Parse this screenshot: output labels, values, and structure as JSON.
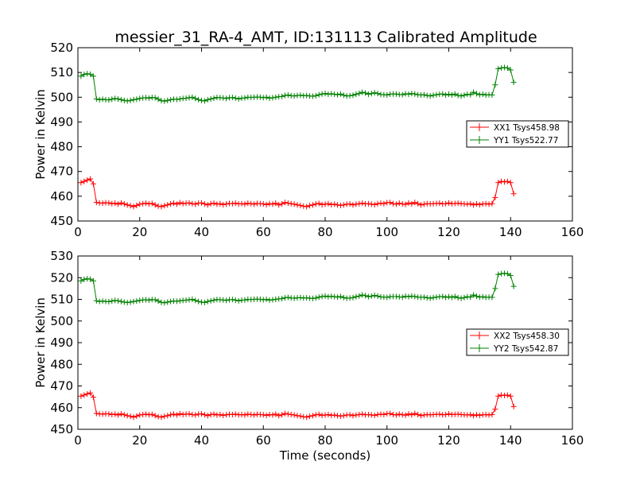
{
  "title": "messier_31_RA-4_AMT, ID:131113 Calibrated Amplitude",
  "xlabel": "Time (seconds)",
  "colors": {
    "xx": "#ff0000",
    "yy": "#008000",
    "frame": "#000000",
    "background": "#ffffff"
  },
  "chart_data": [
    {
      "type": "line",
      "title": "messier_31_RA-4_AMT, ID:131113 Calibrated Amplitude",
      "xlabel": "",
      "ylabel": "Power in Kelvin",
      "xlim": [
        0,
        160
      ],
      "ylim": [
        450,
        520
      ],
      "xticks": [
        "0",
        "20",
        "40",
        "60",
        "80",
        "100",
        "120",
        "140",
        "160"
      ],
      "yticks": [
        "450",
        "460",
        "470",
        "480",
        "490",
        "500",
        "510",
        "520"
      ],
      "grid": false,
      "legend_position": "center-right",
      "x": [
        1,
        2,
        3,
        4,
        5,
        6,
        7,
        8,
        9,
        10,
        11,
        12,
        13,
        14,
        15,
        16,
        17,
        18,
        19,
        20,
        21,
        22,
        23,
        24,
        25,
        26,
        27,
        28,
        29,
        30,
        31,
        32,
        33,
        34,
        35,
        36,
        37,
        38,
        39,
        40,
        41,
        42,
        43,
        44,
        45,
        46,
        47,
        48,
        49,
        50,
        51,
        52,
        53,
        54,
        55,
        56,
        57,
        58,
        59,
        60,
        61,
        62,
        63,
        64,
        65,
        66,
        67,
        68,
        69,
        70,
        71,
        72,
        73,
        74,
        75,
        76,
        77,
        78,
        79,
        80,
        81,
        82,
        83,
        84,
        85,
        86,
        87,
        88,
        89,
        90,
        91,
        92,
        93,
        94,
        95,
        96,
        97,
        98,
        99,
        100,
        101,
        102,
        103,
        104,
        105,
        106,
        107,
        108,
        109,
        110,
        111,
        112,
        113,
        114,
        115,
        116,
        117,
        118,
        119,
        120,
        121,
        122,
        123,
        124,
        125,
        126,
        127,
        128,
        129,
        130,
        131,
        132,
        133,
        134,
        135,
        136,
        137,
        138,
        139,
        140,
        141
      ],
      "series": [
        {
          "name": "XX1 Tsys458.98",
          "color": "#ff0000",
          "values": [
            465.5,
            466,
            466.5,
            467,
            465,
            457.5,
            457.3,
            457.2,
            457.4,
            457.3,
            457.0,
            457.2,
            456.8,
            457.3,
            456.9,
            456.5,
            456.2,
            455.8,
            456.3,
            456.8,
            457.0,
            457.2,
            456.9,
            457.1,
            456.5,
            456.0,
            455.8,
            456.2,
            456.5,
            456.9,
            457.2,
            456.8,
            457.4,
            457.0,
            457.2,
            457.3,
            457.0,
            456.8,
            457.2,
            457.3,
            456.9,
            456.5,
            457.0,
            457.2,
            456.8,
            457.0,
            456.6,
            456.9,
            457.1,
            457.0,
            457.2,
            456.9,
            457.0,
            456.8,
            457.2,
            457.0,
            456.8,
            457.1,
            457.0,
            456.9,
            456.6,
            457.0,
            456.8,
            457.2,
            456.5,
            456.9,
            457.5,
            457.2,
            457.0,
            456.8,
            456.5,
            456.3,
            456.0,
            455.8,
            456.2,
            456.5,
            456.9,
            457.1,
            456.6,
            456.8,
            457.0,
            456.6,
            456.8,
            456.5,
            456.3,
            456.5,
            456.8,
            456.9,
            456.5,
            456.8,
            457.0,
            457.2,
            456.9,
            457.0,
            456.8,
            456.6,
            457.0,
            457.2,
            457.0,
            457.4,
            457.5,
            457.0,
            456.8,
            457.2,
            456.9,
            456.7,
            457.3,
            456.9,
            457.5,
            457.0,
            456.5,
            456.8,
            457.0,
            456.9,
            457.0,
            457.1,
            457.2,
            456.9,
            457.0,
            457.3,
            457.0,
            457.1,
            457.2,
            457.0,
            456.9,
            456.8,
            457.0,
            456.5,
            456.9,
            456.6,
            456.9,
            457.0,
            456.8,
            457.0,
            459.5,
            465.5,
            466,
            465.8,
            466,
            465.5,
            461
          ]
        },
        {
          "name": "YY1 Tsys522.77",
          "color": "#008000",
          "values": [
            508.5,
            509.2,
            509.5,
            509.3,
            508.5,
            499.3,
            499.0,
            499.2,
            499.0,
            498.9,
            499.2,
            499.5,
            499.3,
            499.0,
            498.7,
            498.5,
            498.7,
            499.0,
            499.2,
            499.5,
            499.7,
            499.8,
            499.6,
            499.9,
            499.8,
            499.2,
            498.6,
            498.4,
            498.7,
            499.0,
            499.2,
            499.1,
            499.3,
            499.5,
            499.6,
            499.8,
            500.0,
            499.5,
            499.0,
            498.7,
            498.5,
            499.0,
            499.3,
            499.6,
            499.9,
            499.8,
            499.7,
            499.5,
            499.8,
            499.9,
            499.6,
            499.3,
            499.6,
            499.7,
            500.0,
            499.9,
            500.0,
            500.1,
            500.0,
            499.8,
            500.0,
            499.6,
            499.8,
            500.0,
            500.2,
            500.3,
            500.7,
            500.9,
            500.6,
            500.5,
            500.7,
            500.8,
            500.6,
            500.7,
            500.5,
            500.4,
            500.6,
            501.0,
            501.3,
            501.5,
            501.2,
            501.4,
            501.2,
            501.0,
            501.3,
            500.8,
            500.5,
            500.6,
            500.8,
            501.2,
            501.5,
            502.0,
            501.7,
            501.2,
            501.5,
            501.8,
            501.5,
            501.1,
            501.0,
            500.9,
            501.2,
            501.3,
            501.3,
            501.1,
            501.0,
            501.4,
            501.2,
            501.5,
            501.3,
            501.0,
            500.9,
            501.0,
            500.7,
            500.5,
            500.8,
            501.0,
            501.2,
            501.3,
            500.9,
            501.2,
            500.9,
            501.3,
            500.7,
            500.5,
            500.8,
            501.2,
            501.0,
            502.0,
            501.4,
            501.0,
            501.2,
            500.9,
            501.0,
            500.9,
            505,
            511.5,
            511.8,
            512,
            511.8,
            511,
            506
          ]
        }
      ]
    },
    {
      "type": "line",
      "title": "",
      "xlabel": "Time (seconds)",
      "ylabel": "Power in Kelvin",
      "xlim": [
        0,
        160
      ],
      "ylim": [
        450,
        530
      ],
      "xticks": [
        "0",
        "20",
        "40",
        "60",
        "80",
        "100",
        "120",
        "140",
        "160"
      ],
      "yticks": [
        "450",
        "460",
        "470",
        "480",
        "490",
        "500",
        "510",
        "520",
        "530"
      ],
      "grid": false,
      "legend_position": "center-right",
      "x": [
        1,
        2,
        3,
        4,
        5,
        6,
        7,
        8,
        9,
        10,
        11,
        12,
        13,
        14,
        15,
        16,
        17,
        18,
        19,
        20,
        21,
        22,
        23,
        24,
        25,
        26,
        27,
        28,
        29,
        30,
        31,
        32,
        33,
        34,
        35,
        36,
        37,
        38,
        39,
        40,
        41,
        42,
        43,
        44,
        45,
        46,
        47,
        48,
        49,
        50,
        51,
        52,
        53,
        54,
        55,
        56,
        57,
        58,
        59,
        60,
        61,
        62,
        63,
        64,
        65,
        66,
        67,
        68,
        69,
        70,
        71,
        72,
        73,
        74,
        75,
        76,
        77,
        78,
        79,
        80,
        81,
        82,
        83,
        84,
        85,
        86,
        87,
        88,
        89,
        90,
        91,
        92,
        93,
        94,
        95,
        96,
        97,
        98,
        99,
        100,
        101,
        102,
        103,
        104,
        105,
        106,
        107,
        108,
        109,
        110,
        111,
        112,
        113,
        114,
        115,
        116,
        117,
        118,
        119,
        120,
        121,
        122,
        123,
        124,
        125,
        126,
        127,
        128,
        129,
        130,
        131,
        132,
        133,
        134,
        135,
        136,
        137,
        138,
        139,
        140,
        141
      ],
      "series": [
        {
          "name": "XX2 Tsys458.30",
          "color": "#ff0000",
          "values": [
            465.3,
            465.8,
            466.3,
            466.8,
            464.8,
            457.3,
            457.1,
            457.0,
            457.2,
            457.1,
            456.8,
            457.0,
            456.6,
            457.1,
            456.7,
            456.3,
            456.0,
            455.6,
            456.1,
            456.6,
            456.8,
            457.0,
            456.7,
            456.9,
            456.3,
            455.8,
            455.6,
            456.0,
            456.3,
            456.7,
            457.0,
            456.6,
            457.2,
            456.8,
            457.0,
            457.1,
            456.8,
            456.6,
            457.0,
            457.1,
            456.7,
            456.3,
            456.8,
            457.0,
            456.6,
            456.8,
            456.4,
            456.7,
            456.9,
            456.8,
            457.0,
            456.7,
            456.8,
            456.6,
            457.0,
            456.8,
            456.6,
            456.9,
            456.8,
            456.7,
            456.4,
            456.8,
            456.6,
            457.0,
            456.3,
            456.7,
            457.3,
            457.0,
            456.8,
            456.6,
            456.3,
            456.1,
            455.8,
            455.6,
            456.0,
            456.3,
            456.7,
            456.9,
            456.4,
            456.6,
            456.8,
            456.4,
            456.6,
            456.3,
            456.1,
            456.3,
            456.6,
            456.7,
            456.3,
            456.6,
            456.8,
            457.0,
            456.7,
            456.8,
            456.6,
            456.4,
            456.8,
            457.0,
            456.8,
            457.2,
            457.3,
            456.8,
            456.6,
            457.0,
            456.7,
            456.5,
            457.1,
            456.7,
            457.3,
            456.8,
            456.3,
            456.6,
            456.8,
            456.7,
            456.8,
            456.9,
            457.0,
            456.7,
            456.8,
            457.1,
            456.8,
            456.9,
            457.0,
            456.8,
            456.7,
            456.6,
            456.8,
            456.3,
            456.7,
            456.4,
            456.7,
            456.8,
            456.6,
            456.8,
            459.3,
            465.3,
            465.8,
            465.6,
            465.8,
            465.3,
            460.5
          ]
        },
        {
          "name": "YY2 Tsys542.87",
          "color": "#008000",
          "values": [
            518.5,
            519.2,
            519.5,
            519.3,
            518.5,
            509.3,
            509.0,
            509.2,
            509.0,
            508.9,
            509.2,
            509.5,
            509.3,
            509.0,
            508.7,
            508.5,
            508.7,
            509.0,
            509.2,
            509.5,
            509.7,
            509.8,
            509.6,
            509.9,
            509.8,
            509.2,
            508.6,
            508.4,
            508.7,
            509.0,
            509.2,
            509.1,
            509.3,
            509.5,
            509.6,
            509.8,
            510.0,
            509.5,
            509.0,
            508.7,
            508.5,
            509.0,
            509.3,
            509.6,
            509.9,
            509.8,
            509.7,
            509.5,
            509.8,
            509.9,
            509.6,
            509.3,
            509.6,
            509.7,
            510.0,
            509.9,
            510.0,
            510.1,
            510.0,
            509.8,
            510.0,
            509.6,
            509.8,
            510.0,
            510.2,
            510.3,
            510.7,
            510.9,
            510.6,
            510.5,
            510.7,
            510.8,
            510.6,
            510.7,
            510.5,
            510.4,
            510.6,
            511.0,
            511.3,
            511.5,
            511.2,
            511.4,
            511.2,
            511.0,
            511.3,
            510.8,
            510.5,
            510.6,
            510.8,
            511.2,
            511.5,
            512.0,
            511.7,
            511.2,
            511.5,
            511.8,
            511.5,
            511.1,
            511.0,
            510.9,
            511.2,
            511.3,
            511.3,
            511.1,
            511.0,
            511.4,
            511.2,
            511.5,
            511.3,
            511.0,
            510.9,
            511.0,
            510.7,
            510.5,
            510.8,
            511.0,
            511.2,
            511.3,
            510.9,
            511.2,
            510.9,
            511.3,
            510.7,
            510.5,
            510.8,
            511.2,
            511.0,
            512.0,
            511.4,
            511.0,
            511.2,
            510.9,
            511.0,
            510.9,
            515,
            521.5,
            521.8,
            522,
            521.8,
            521,
            516
          ]
        }
      ]
    }
  ]
}
